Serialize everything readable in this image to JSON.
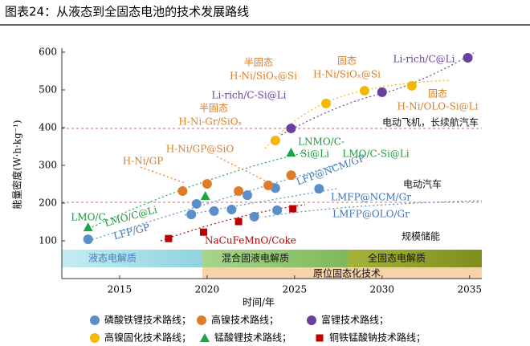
{
  "chart_data": {
    "type": "scatter",
    "title": "图表24：从液态到全固态电池的技术发展路线",
    "x_label": "时间/年",
    "y_label": "能量密度(W·h·kg⁻¹)",
    "xlim": [
      2011.7,
      2035.7
    ],
    "xticks": [
      2015,
      2020,
      2025,
      2030,
      2035
    ],
    "ylim": [
      0,
      600
    ],
    "yticks": [
      100,
      200,
      300,
      400,
      500,
      600
    ],
    "series": [
      {
        "name": "磷酸铁锂技术路线；",
        "color": "#5b8fc9",
        "marker": "circle",
        "x": [
          2013.2,
          2019.1,
          2019.4,
          2020.4,
          2021.4,
          2022.3,
          2022.7,
          2023.9,
          2024.0,
          2026.4
        ],
        "values": [
          104,
          170,
          198,
          179,
          183,
          221,
          164,
          240,
          181,
          238
        ]
      },
      {
        "name": "高镍技术路线；",
        "color": "#e07b27",
        "marker": "circle",
        "x": [
          2018.6,
          2020.0,
          2021.8,
          2023.5,
          2024.8
        ],
        "values": [
          232,
          251,
          232,
          247,
          274
        ]
      },
      {
        "name": "富锂技术路线；",
        "color": "#6b3fa0",
        "marker": "circle",
        "x": [
          2024.8,
          2030.0,
          2034.9
        ],
        "values": [
          398,
          494,
          585
        ]
      },
      {
        "name": "高镍固化技术路线；",
        "color": "#f5b800",
        "marker": "circle",
        "x": [
          2023.9,
          2026.8,
          2029.0,
          2031.7
        ],
        "values": [
          366,
          464,
          498,
          511
        ]
      },
      {
        "name": "锰酸锂技术路线；",
        "color": "#1ea34a",
        "marker": "triangle",
        "x": [
          2013.2,
          2019.9,
          2024.8
        ],
        "values": [
          136,
          219,
          334
        ]
      },
      {
        "name": "铜铁锰酸钠技术路线；",
        "color": "#c00000",
        "marker": "square",
        "x": [
          2017.8,
          2019.8,
          2021.8,
          2024.9
        ],
        "values": [
          106,
          123,
          151,
          185
        ]
      }
    ],
    "annotations": [
      "半固态",
      "H-Ni/SiOₓ@Si",
      "固态",
      "H-Ni/SiOₓ@Si",
      "Li-rich/C@Li",
      "Li-rich/C-Si@Li",
      "半固态",
      "H-Ni-Gr/SiOₓ",
      "固态",
      "H-Ni/OLO-Si@Li",
      "电动飞机，长续航汽车",
      "LNMO/C-",
      "Si@Li",
      "LMO/C-Si@Li",
      "H-Ni/GP@SiO",
      "H-Ni/GP",
      "LFP@NCM/GP",
      "电动汽车",
      "LMO/C",
      "LMO/C@Li",
      "LFP/GP",
      "LMFP@NCM/Gr",
      "LMFP@OLO/Gr",
      "NaCuFeMnO/Coke",
      "规模储能"
    ],
    "phases": [
      "液态电解质",
      "混合固液电解质",
      "全固态电解质",
      "原位固态化技术"
    ]
  }
}
